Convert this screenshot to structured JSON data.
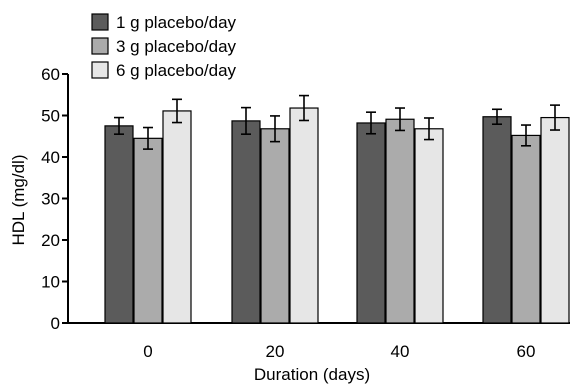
{
  "chart_data": {
    "type": "bar",
    "xlabel": "Duration (days)",
    "ylabel": "HDL (mg/dl)",
    "categories": [
      "0",
      "20",
      "40",
      "60"
    ],
    "ylim": [
      0,
      60
    ],
    "yticks": [
      "0",
      "10",
      "20",
      "30",
      "40",
      "50",
      "60"
    ],
    "grid": false,
    "legend_position": "top-left",
    "error_bars": true,
    "series": [
      {
        "name": "1 g placebo/day",
        "color": "#5b5b5b",
        "values": [
          47.5,
          48.7,
          48.2,
          49.7
        ],
        "errors": [
          2.0,
          3.2,
          2.6,
          1.8
        ]
      },
      {
        "name": "3 g placebo/day",
        "color": "#ababab",
        "values": [
          44.5,
          46.8,
          49.1,
          45.2
        ],
        "errors": [
          2.6,
          3.1,
          2.7,
          2.5
        ]
      },
      {
        "name": "6 g placebo/day",
        "color": "#e6e6e6",
        "values": [
          51.1,
          51.8,
          46.8,
          49.5
        ],
        "errors": [
          2.8,
          3.0,
          2.6,
          3.0
        ]
      }
    ]
  }
}
